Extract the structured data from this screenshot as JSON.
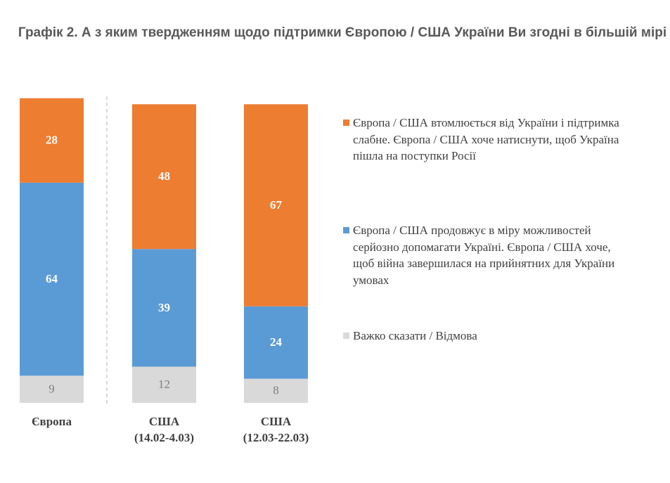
{
  "chart_data": {
    "type": "stacked-bar",
    "title": "Графік 2. А з яким твердженням щодо підтримки Європою / США України Ви згодні в більшій мірі",
    "categories": [
      "Європа",
      "США\n(14.02-4.03)",
      "США\n(12.03-22.03)"
    ],
    "series": [
      {
        "name": "Європа / США втомлюється від України і підтримка слабне. Європа / США хоче натиснути, щоб Україна пішла на поступки Росії",
        "color": "#ED7D31",
        "values": [
          28,
          48,
          67
        ]
      },
      {
        "name": "Європа / США продовжує в міру можливостей серйозно допомагати Україні. Європа / США хоче, щоб війна завершилася на прийнятних для України умовах",
        "color": "#5B9BD5",
        "values": [
          64,
          39,
          24
        ]
      },
      {
        "name": "Важко сказати / Відмова",
        "color": "#D9D9D9",
        "values": [
          9,
          12,
          8
        ]
      }
    ]
  }
}
